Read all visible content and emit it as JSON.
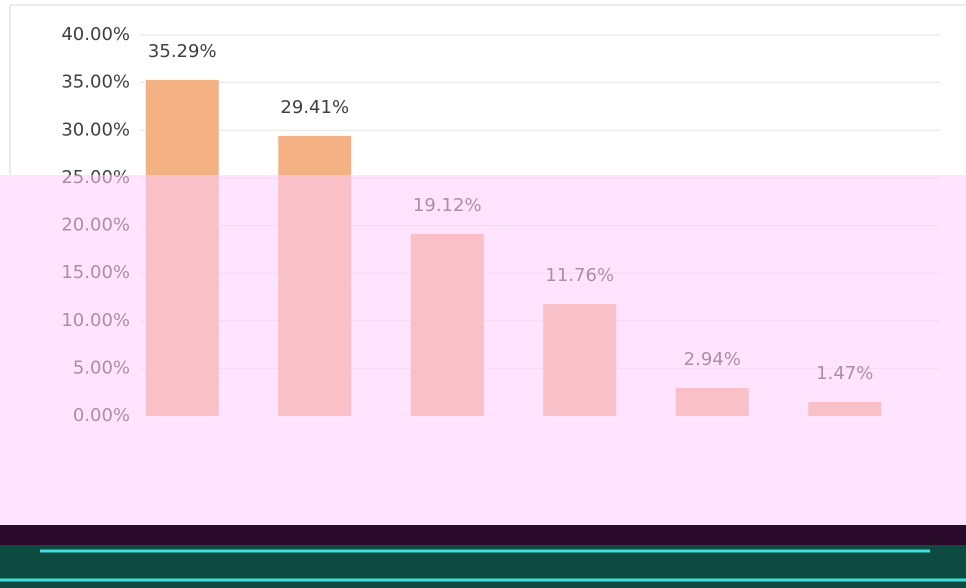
{
  "chart_data": {
    "type": "bar",
    "categories": [
      null,
      null,
      null,
      null,
      null,
      null
    ],
    "values": [
      35.29,
      29.41,
      19.12,
      11.76,
      2.94,
      1.47
    ],
    "value_labels": [
      "35.29%",
      "29.41%",
      "19.12%",
      "11.76%",
      "2.94%",
      "1.47%"
    ],
    "color": "#f4b183",
    "ylim": [
      0,
      40
    ],
    "yticks": [
      {
        "value": 0,
        "label": "0.00%"
      },
      {
        "value": 5,
        "label": "5.00%"
      },
      {
        "value": 10,
        "label": "10.00%"
      },
      {
        "value": 15,
        "label": "15.00%"
      },
      {
        "value": 20,
        "label": "20.00%"
      },
      {
        "value": 25,
        "label": "25.00%"
      },
      {
        "value": 30,
        "label": "30.00%"
      },
      {
        "value": 35,
        "label": "35.00%"
      },
      {
        "value": 40,
        "label": "40.00%"
      }
    ],
    "grid": true
  }
}
